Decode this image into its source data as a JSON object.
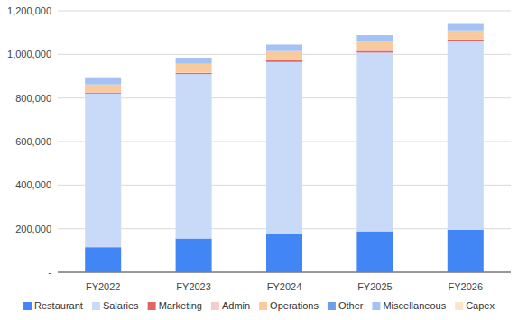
{
  "chart_data": {
    "type": "bar",
    "stacked": true,
    "grid": true,
    "legend": "bottom",
    "categories": [
      "FY2022",
      "FY2023",
      "FY2024",
      "FY2025",
      "FY2026"
    ],
    "ylim": [
      0,
      1200000
    ],
    "yticks": [
      {
        "value": 0,
        "label": "-"
      },
      {
        "value": 200000,
        "label": "200,000"
      },
      {
        "value": 400000,
        "label": "400,000"
      },
      {
        "value": 600000,
        "label": "600,000"
      },
      {
        "value": 800000,
        "label": "800,000"
      },
      {
        "value": 1000000,
        "label": "1,000,000"
      },
      {
        "value": 1200000,
        "label": "1,200,000"
      }
    ],
    "series": [
      {
        "name": "Restaurant",
        "color": "#4285f4",
        "values": [
          115000,
          155000,
          175000,
          188000,
          195000
        ]
      },
      {
        "name": "Salaries",
        "color": "#c9daf8",
        "values": [
          705000,
          755000,
          790000,
          820000,
          865000
        ]
      },
      {
        "name": "Marketing",
        "color": "#e06666",
        "values": [
          5000,
          5000,
          8000,
          8000,
          8000
        ]
      },
      {
        "name": "Admin",
        "color": "#f4cccc",
        "values": [
          2000,
          2000,
          2000,
          2000,
          2000
        ]
      },
      {
        "name": "Operations",
        "color": "#f9cb9c",
        "values": [
          35000,
          40000,
          40000,
          40000,
          40000
        ]
      },
      {
        "name": "Other",
        "color": "#6d9eeb",
        "values": [
          0,
          0,
          0,
          0,
          0
        ]
      },
      {
        "name": "Miscellaneous",
        "color": "#a4c2f4",
        "values": [
          33000,
          28000,
          30000,
          30000,
          30000
        ]
      },
      {
        "name": "Capex",
        "color": "#fce5cd",
        "values": [
          0,
          0,
          0,
          0,
          0
        ]
      }
    ]
  }
}
